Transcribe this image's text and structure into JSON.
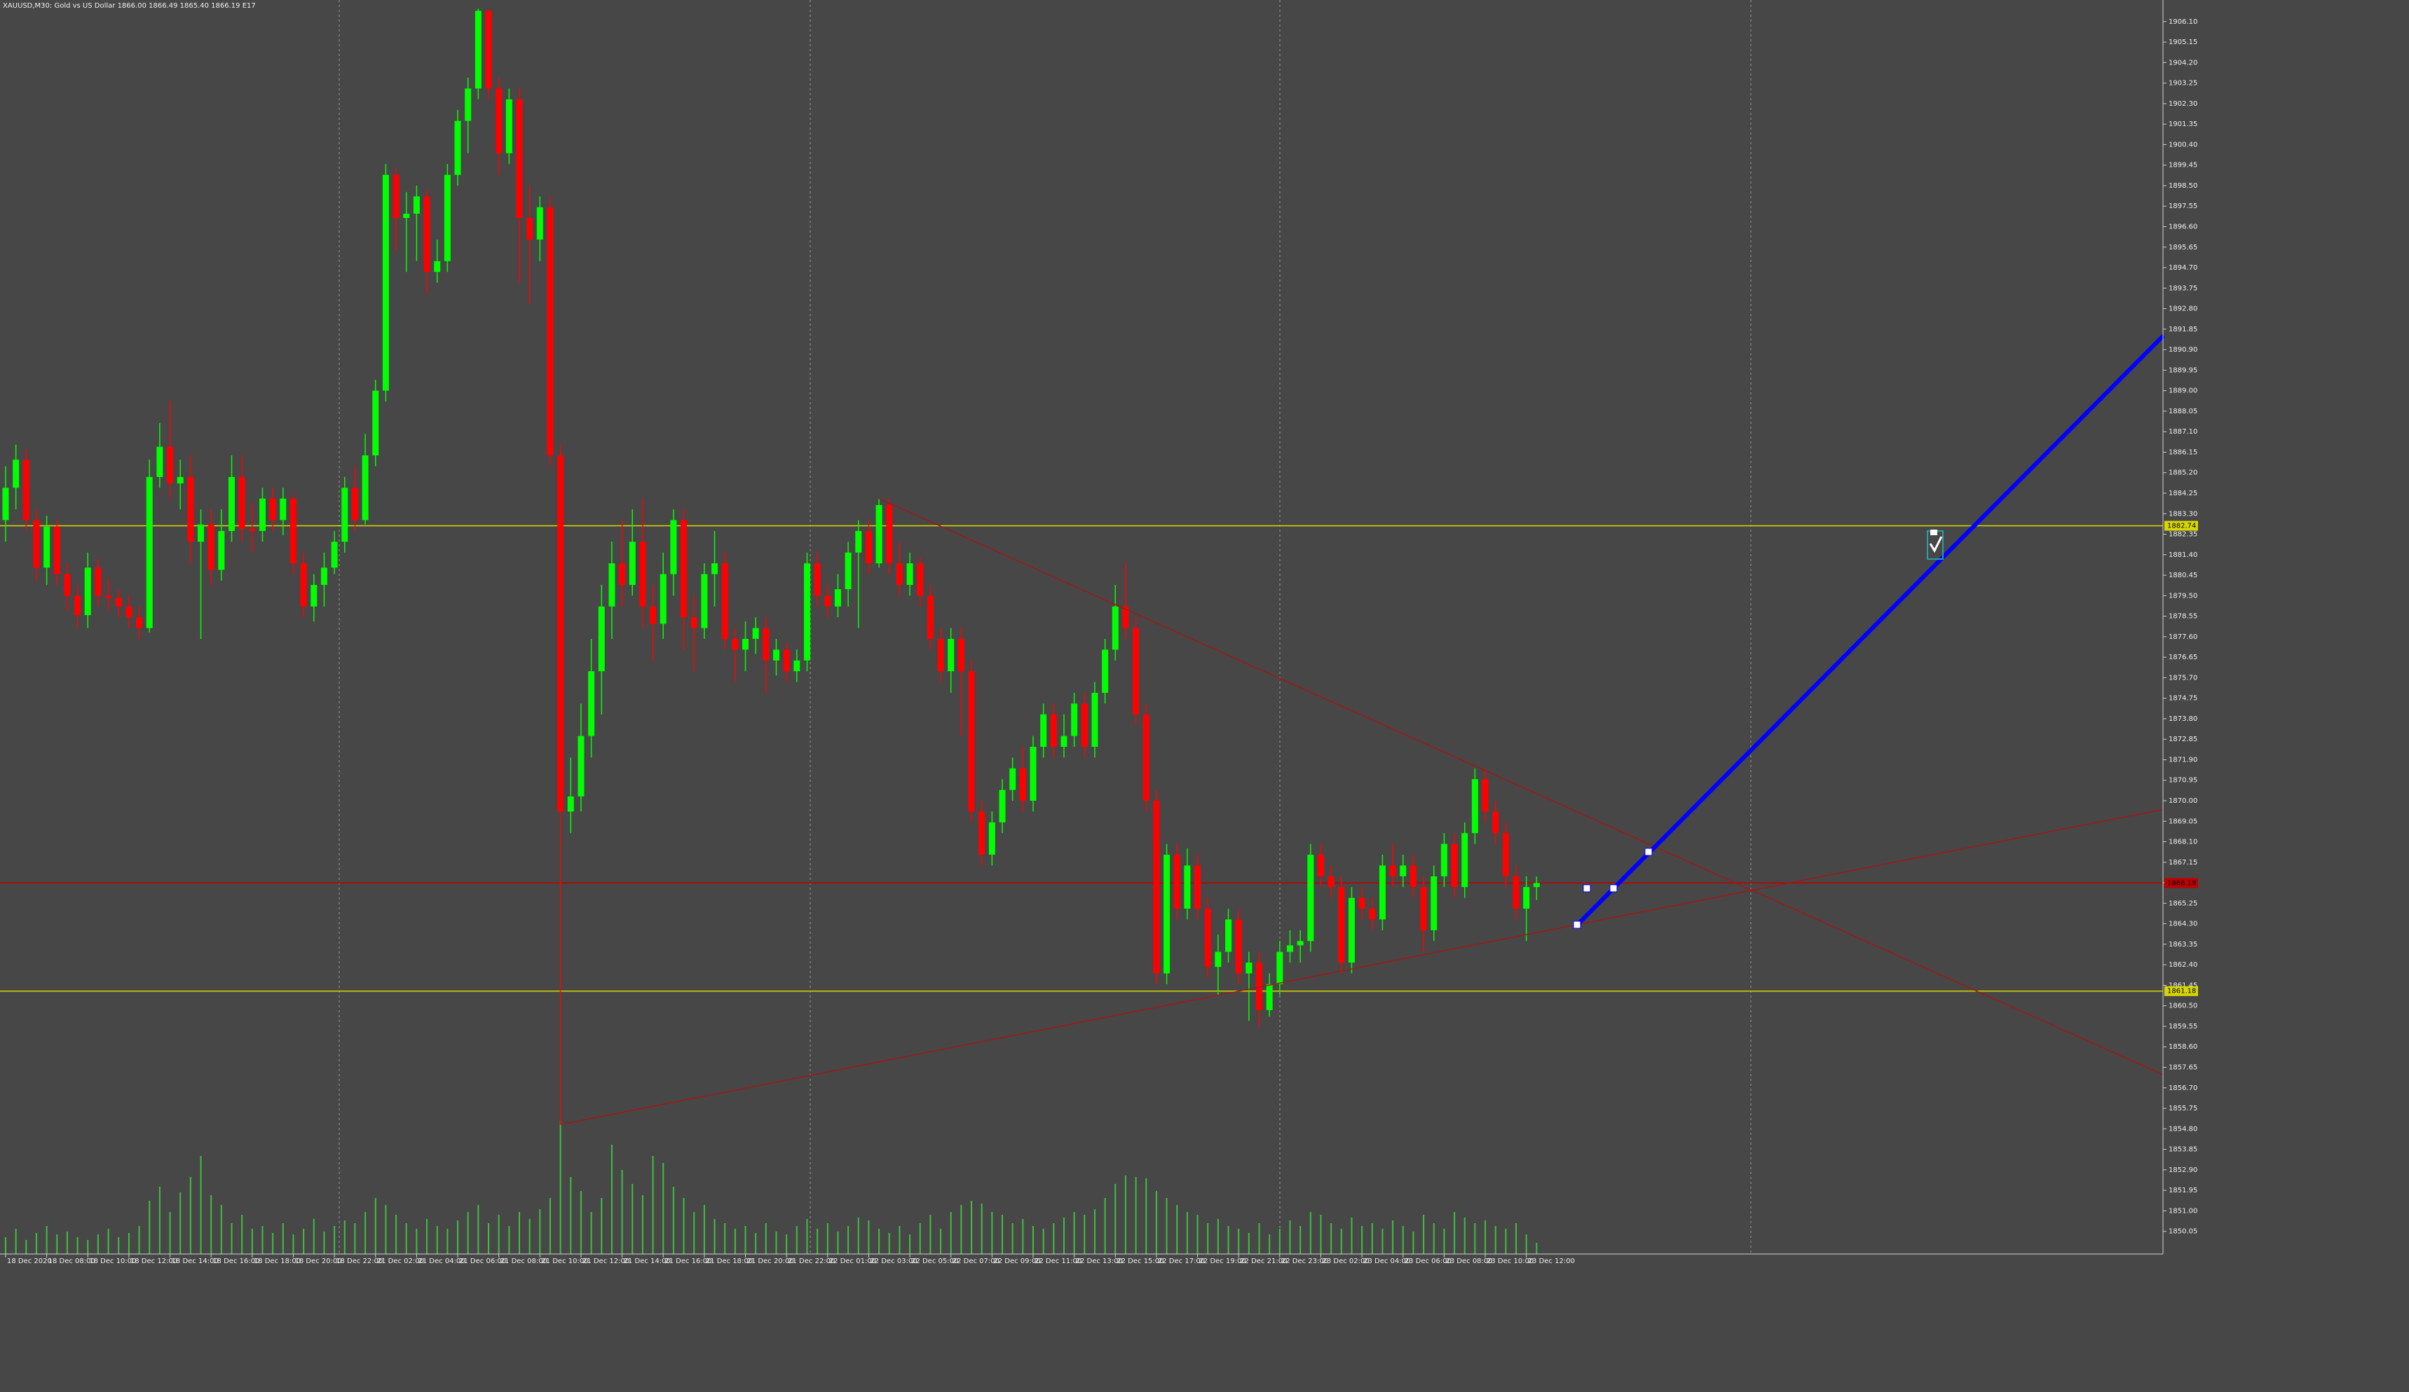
{
  "chart_data": {
    "type": "candlestick",
    "title": "XAUUSD,M30:  Gold vs US Dollar  1866.00 1866.49 1865.40 1866.19  E17",
    "bull_color": "#00ff00",
    "bear_color": "#ff0000",
    "volume_color": "#3fbf3f",
    "ylim": [
      1849.0,
      1907.1
    ],
    "yticks": [
      1850.05,
      {
        "value": 1851.0,
        "label": "1851.00"
      },
      1851.95,
      {
        "value": 1852.9,
        "label": "1852.90"
      },
      1853.85,
      {
        "value": 1854.8,
        "label": "1854.80"
      },
      1855.75,
      {
        "value": 1856.7,
        "label": "1856.70"
      },
      1857.65,
      {
        "value": 1858.6,
        "label": "1858.60"
      },
      1859.55,
      {
        "value": 1860.5,
        "label": "1860.50"
      },
      1861.45,
      {
        "value": 1862.4,
        "label": "1862.40"
      },
      1863.35,
      {
        "value": 1864.3,
        "label": "1864.30"
      },
      1865.25,
      {
        "value": 1866.2,
        "label": "1866.20"
      },
      1867.15,
      {
        "value": 1868.1,
        "label": "1868.10"
      },
      1869.05,
      {
        "value": 1870.0,
        "label": "1870.00"
      },
      1870.95,
      {
        "value": 1871.9,
        "label": "1871.90"
      },
      1872.85,
      {
        "value": 1873.8,
        "label": "1873.80"
      },
      1874.75,
      {
        "value": 1875.7,
        "label": "1875.70"
      },
      1876.65,
      {
        "value": 1877.6,
        "label": "1877.60"
      },
      1878.55,
      {
        "value": 1879.5,
        "label": "1879.50"
      },
      1880.45,
      {
        "value": 1881.4,
        "label": "1881.40"
      },
      1882.35,
      {
        "value": 1883.3,
        "label": "1883.30"
      },
      1884.25,
      {
        "value": 1885.2,
        "label": "1885.20"
      },
      1886.15,
      {
        "value": 1887.1,
        "label": "1887.10"
      },
      1888.05,
      {
        "value": 1889.0,
        "label": "1889.00"
      },
      1889.95,
      {
        "value": 1890.9,
        "label": "1890.90"
      },
      1891.85,
      {
        "value": 1892.8,
        "label": "1892.80"
      },
      1893.75,
      {
        "value": 1894.7,
        "label": "1894.70"
      },
      1895.65,
      {
        "value": 1896.6,
        "label": "1896.60"
      },
      1897.55,
      {
        "value": 1898.5,
        "label": "1898.50"
      },
      1899.45,
      {
        "value": 1900.4,
        "label": "1900.40"
      },
      1901.35,
      {
        "value": 1902.3,
        "label": "1902.30"
      },
      1903.25,
      {
        "value": 1904.2,
        "label": "1904.20"
      },
      1905.15,
      {
        "value": 1906.1,
        "label": "1906.10"
      }
    ],
    "categories": [
      "18 Dec 2020",
      null,
      null,
      null,
      "18 Dec 08:00",
      null,
      null,
      null,
      "18 Dec 10:00",
      null,
      null,
      null,
      "18 Dec 12:00",
      null,
      null,
      null,
      "18 Dec 14:00",
      null,
      null,
      null,
      "18 Dec 16:00",
      null,
      null,
      null,
      "18 Dec 18:00",
      null,
      null,
      null,
      "18 Dec 20:00",
      null,
      null,
      null,
      "18 Dec 22:00",
      null,
      null,
      null,
      "21 Dec 02:00",
      null,
      null,
      null,
      "21 Dec 04:00",
      null,
      null,
      null,
      "21 Dec 06:00",
      null,
      null,
      null,
      "21 Dec 08:00",
      null,
      null,
      null,
      "21 Dec 10:00",
      null,
      null,
      null,
      "21 Dec 12:00",
      null,
      null,
      null,
      "21 Dec 14:00",
      null,
      null,
      null,
      "21 Dec 16:00",
      null,
      null,
      null,
      "21 Dec 18:00",
      null,
      null,
      null,
      "21 Dec 20:00",
      null,
      null,
      null,
      "21 Dec 22:00",
      null,
      null,
      null,
      "22 Dec 01:00",
      null,
      null,
      null,
      "22 Dec 03:00",
      null,
      null,
      null,
      "22 Dec 05:00",
      null,
      null,
      null,
      "22 Dec 07:00",
      null,
      null,
      null,
      "22 Dec 09:00",
      null,
      null,
      null,
      "22 Dec 11:00",
      null,
      null,
      null,
      "22 Dec 13:00",
      null,
      null,
      null,
      "22 Dec 15:00",
      null,
      null,
      null,
      "22 Dec 17:00",
      null,
      null,
      null,
      "22 Dec 19:00",
      null,
      null,
      null,
      "22 Dec 21:00",
      null,
      null,
      null,
      "22 Dec 23:00",
      null,
      null,
      null,
      "23 Dec 02:00",
      null,
      null,
      null,
      "23 Dec 04:00",
      null,
      null,
      null,
      "23 Dec 06:00",
      null,
      null,
      null,
      "23 Dec 08:00",
      null,
      null,
      null,
      "23 Dec 10:00",
      null,
      null,
      null,
      "23 Dec 12:00",
      null
    ],
    "candles": [
      [
        1883.0,
        1885.5,
        1882.0,
        1884.5
      ],
      [
        1884.5,
        1886.5,
        1883.5,
        1885.8
      ],
      [
        1885.8,
        1886.3,
        1882.5,
        1883.0
      ],
      [
        1883.0,
        1883.5,
        1880.2,
        1880.8
      ],
      [
        1880.8,
        1883.2,
        1880.0,
        1882.7
      ],
      [
        1882.7,
        1883.0,
        1880.0,
        1880.5
      ],
      [
        1880.5,
        1881.0,
        1878.8,
        1879.5
      ],
      [
        1879.5,
        1880.0,
        1878.0,
        1878.6
      ],
      [
        1878.6,
        1881.5,
        1878.0,
        1880.8
      ],
      [
        1880.8,
        1881.2,
        1879.0,
        1879.5
      ],
      [
        1879.5,
        1880.3,
        1878.8,
        1879.4
      ],
      [
        1879.4,
        1879.8,
        1878.5,
        1879.0
      ],
      [
        1879.0,
        1879.5,
        1878.0,
        1878.5
      ],
      [
        1878.5,
        1879.0,
        1877.5,
        1878.0
      ],
      [
        1878.0,
        1885.8,
        1877.8,
        1885.0
      ],
      [
        1885.0,
        1887.5,
        1884.5,
        1886.4
      ],
      [
        1886.4,
        1888.5,
        1884.0,
        1884.7
      ],
      [
        1884.7,
        1885.8,
        1883.5,
        1885.0
      ],
      [
        1885.0,
        1886.0,
        1881.0,
        1882.0
      ],
      [
        1882.0,
        1883.5,
        1877.5,
        1882.8
      ],
      [
        1882.8,
        1883.5,
        1880.0,
        1880.7
      ],
      [
        1880.7,
        1883.5,
        1880.2,
        1882.5
      ],
      [
        1882.5,
        1886.0,
        1882.0,
        1885.0
      ],
      [
        1885.0,
        1886.0,
        1882.0,
        1882.6
      ],
      [
        1882.6,
        1883.8,
        1881.5,
        1882.5
      ],
      [
        1882.5,
        1884.5,
        1882.0,
        1884.0
      ],
      [
        1884.0,
        1884.5,
        1882.5,
        1883.0
      ],
      [
        1883.0,
        1884.5,
        1882.3,
        1884.0
      ],
      [
        1884.0,
        1884.2,
        1880.5,
        1881.0
      ],
      [
        1881.0,
        1881.5,
        1878.5,
        1879.0
      ],
      [
        1879.0,
        1880.5,
        1878.3,
        1880.0
      ],
      [
        1880.0,
        1881.5,
        1879.0,
        1880.8
      ],
      [
        1880.8,
        1882.5,
        1880.5,
        1882.0
      ],
      [
        1882.0,
        1885.0,
        1881.5,
        1884.5
      ],
      [
        1884.5,
        1885.5,
        1882.5,
        1883.0
      ],
      [
        1883.0,
        1887.0,
        1882.8,
        1886.0
      ],
      [
        1886.0,
        1889.5,
        1885.5,
        1889.0
      ],
      [
        1889.0,
        1899.5,
        1888.5,
        1899.0
      ],
      [
        1899.0,
        1899.3,
        1895.5,
        1897.0
      ],
      [
        1897.0,
        1898.2,
        1894.5,
        1897.2
      ],
      [
        1897.2,
        1898.5,
        1895.0,
        1898.0
      ],
      [
        1898.0,
        1898.3,
        1893.5,
        1894.5
      ],
      [
        1894.5,
        1896.0,
        1894.0,
        1895.0
      ],
      [
        1895.0,
        1899.5,
        1894.5,
        1899.0
      ],
      [
        1899.0,
        1902.0,
        1898.5,
        1901.5
      ],
      [
        1901.5,
        1903.5,
        1900.0,
        1903.0
      ],
      [
        1903.0,
        1906.7,
        1902.5,
        1906.6
      ],
      [
        1906.6,
        1906.7,
        1902.5,
        1903.0
      ],
      [
        1903.0,
        1903.5,
        1899.0,
        1900.0
      ],
      [
        1900.0,
        1903.0,
        1899.5,
        1902.5
      ],
      [
        1902.5,
        1903.0,
        1894.0,
        1897.0
      ],
      [
        1897.0,
        1898.5,
        1893.0,
        1896.0
      ],
      [
        1896.0,
        1898.0,
        1895.0,
        1897.5
      ],
      [
        1897.5,
        1898.0,
        1885.5,
        1886.0
      ],
      [
        1886.0,
        1886.5,
        1855.0,
        1869.5
      ],
      [
        1869.5,
        1872.0,
        1868.5,
        1870.2
      ],
      [
        1870.2,
        1874.5,
        1869.5,
        1873.0
      ],
      [
        1873.0,
        1877.5,
        1872.0,
        1876.0
      ],
      [
        1876.0,
        1880.0,
        1874.0,
        1879.0
      ],
      [
        1879.0,
        1882.0,
        1877.5,
        1881.0
      ],
      [
        1881.0,
        1883.0,
        1879.0,
        1880.0
      ],
      [
        1880.0,
        1883.5,
        1879.5,
        1882.0
      ],
      [
        1882.0,
        1884.0,
        1878.0,
        1879.0
      ],
      [
        1879.0,
        1880.0,
        1876.5,
        1878.2
      ],
      [
        1878.2,
        1881.5,
        1877.5,
        1880.5
      ],
      [
        1880.5,
        1883.5,
        1879.5,
        1883.0
      ],
      [
        1883.0,
        1883.5,
        1877.0,
        1878.5
      ],
      [
        1878.5,
        1879.5,
        1876.0,
        1878.0
      ],
      [
        1878.0,
        1881.0,
        1877.5,
        1880.5
      ],
      [
        1880.5,
        1882.5,
        1879.0,
        1881.0
      ],
      [
        1881.0,
        1881.5,
        1877.0,
        1877.5
      ],
      [
        1877.5,
        1878.0,
        1875.5,
        1877.0
      ],
      [
        1877.0,
        1878.3,
        1876.0,
        1877.5
      ],
      [
        1877.5,
        1878.5,
        1876.8,
        1878.0
      ],
      [
        1878.0,
        1878.5,
        1875.0,
        1876.5
      ],
      [
        1876.5,
        1877.5,
        1875.8,
        1877.0
      ],
      [
        1877.0,
        1877.3,
        1875.5,
        1876.0
      ],
      [
        1876.0,
        1877.0,
        1875.5,
        1876.5
      ],
      [
        1876.5,
        1881.5,
        1876.0,
        1881.0
      ],
      [
        1881.0,
        1881.5,
        1879.0,
        1879.5
      ],
      [
        1879.5,
        1880.0,
        1878.5,
        1879.0
      ],
      [
        1879.0,
        1880.5,
        1878.5,
        1879.8
      ],
      [
        1879.8,
        1882.0,
        1879.0,
        1881.5
      ],
      [
        1881.5,
        1883.0,
        1878.0,
        1882.5
      ],
      [
        1882.5,
        1883.0,
        1880.5,
        1881.0
      ],
      [
        1881.0,
        1884.0,
        1880.8,
        1883.7
      ],
      [
        1883.7,
        1884.0,
        1880.5,
        1881.0
      ],
      [
        1881.0,
        1882.0,
        1879.5,
        1880.0
      ],
      [
        1880.0,
        1881.5,
        1879.5,
        1881.0
      ],
      [
        1881.0,
        1881.3,
        1879.0,
        1879.5
      ],
      [
        1879.5,
        1880.0,
        1877.0,
        1877.5
      ],
      [
        1877.5,
        1878.0,
        1875.5,
        1876.0
      ],
      [
        1876.0,
        1878.0,
        1875.0,
        1877.5
      ],
      [
        1877.5,
        1878.0,
        1873.0,
        1876.0
      ],
      [
        1876.0,
        1876.5,
        1869.0,
        1869.5
      ],
      [
        1869.5,
        1870.0,
        1867.0,
        1867.5
      ],
      [
        1867.5,
        1869.5,
        1867.0,
        1869.0
      ],
      [
        1869.0,
        1871.0,
        1868.5,
        1870.5
      ],
      [
        1870.5,
        1872.0,
        1870.0,
        1871.5
      ],
      [
        1871.5,
        1872.5,
        1869.5,
        1870.0
      ],
      [
        1870.0,
        1873.0,
        1869.5,
        1872.5
      ],
      [
        1872.5,
        1874.5,
        1872.0,
        1874.0
      ],
      [
        1874.0,
        1874.5,
        1872.0,
        1872.5
      ],
      [
        1872.5,
        1874.0,
        1872.0,
        1873.0
      ],
      [
        1873.0,
        1875.0,
        1872.5,
        1874.5
      ],
      [
        1874.5,
        1875.0,
        1872.0,
        1872.5
      ],
      [
        1872.5,
        1875.5,
        1872.0,
        1875.0
      ],
      [
        1875.0,
        1877.5,
        1874.5,
        1877.0
      ],
      [
        1877.0,
        1880.0,
        1876.5,
        1879.0
      ],
      [
        1879.0,
        1881.0,
        1877.5,
        1878.0
      ],
      [
        1878.0,
        1878.5,
        1873.5,
        1874.0
      ],
      [
        1874.0,
        1874.5,
        1869.5,
        1870.0
      ],
      [
        1870.0,
        1870.5,
        1861.5,
        1862.0
      ],
      [
        1862.0,
        1868.0,
        1861.5,
        1867.5
      ],
      [
        1867.5,
        1868.0,
        1864.5,
        1865.0
      ],
      [
        1865.0,
        1867.8,
        1864.5,
        1867.0
      ],
      [
        1867.0,
        1867.5,
        1864.5,
        1865.0
      ],
      [
        1865.0,
        1865.5,
        1861.8,
        1862.3
      ],
      [
        1862.3,
        1863.8,
        1861.0,
        1863.0
      ],
      [
        1863.0,
        1865.0,
        1862.5,
        1864.5
      ],
      [
        1864.5,
        1865.0,
        1861.5,
        1862.0
      ],
      [
        1862.0,
        1863.0,
        1859.8,
        1862.5
      ],
      [
        1862.5,
        1863.0,
        1859.5,
        1860.3
      ],
      [
        1860.3,
        1862.0,
        1860.0,
        1861.5
      ],
      [
        1861.5,
        1863.5,
        1861.0,
        1863.0
      ],
      [
        1863.0,
        1864.0,
        1862.5,
        1863.3
      ],
      [
        1863.3,
        1864.0,
        1862.5,
        1863.5
      ],
      [
        1863.5,
        1868.0,
        1863.0,
        1867.5
      ],
      [
        1867.5,
        1868.0,
        1866.0,
        1866.5
      ],
      [
        1866.5,
        1867.0,
        1865.5,
        1866.0
      ],
      [
        1866.0,
        1866.5,
        1862.0,
        1862.5
      ],
      [
        1862.5,
        1866.0,
        1862.0,
        1865.5
      ],
      [
        1865.5,
        1866.0,
        1864.5,
        1865.0
      ],
      [
        1865.0,
        1865.5,
        1864.0,
        1864.5
      ],
      [
        1864.5,
        1867.5,
        1864.0,
        1867.0
      ],
      [
        1867.0,
        1868.0,
        1866.0,
        1866.5
      ],
      [
        1866.5,
        1867.5,
        1866.0,
        1867.0
      ],
      [
        1867.0,
        1867.5,
        1865.5,
        1866.0
      ],
      [
        1866.0,
        1866.5,
        1863.0,
        1864.0
      ],
      [
        1864.0,
        1867.0,
        1863.5,
        1866.5
      ],
      [
        1866.5,
        1868.5,
        1866.0,
        1868.0
      ],
      [
        1868.0,
        1868.5,
        1865.5,
        1866.0
      ],
      [
        1866.0,
        1869.0,
        1865.5,
        1868.5
      ],
      [
        1868.5,
        1871.5,
        1868.0,
        1871.0
      ],
      [
        1871.0,
        1871.5,
        1869.0,
        1869.5
      ],
      [
        1869.5,
        1870.0,
        1868.0,
        1868.5
      ],
      [
        1868.5,
        1869.0,
        1866.0,
        1866.5
      ],
      [
        1866.5,
        1867.0,
        1864.5,
        1865.0
      ],
      [
        1865.0,
        1866.5,
        1863.5,
        1866.0
      ],
      [
        1866.0,
        1866.49,
        1865.4,
        1866.19
      ]
    ],
    "volume": [
      12,
      18,
      10,
      15,
      20,
      14,
      16,
      12,
      10,
      14,
      18,
      12,
      15,
      20,
      38,
      48,
      30,
      44,
      55,
      70,
      42,
      35,
      22,
      28,
      18,
      20,
      15,
      22,
      14,
      18,
      25,
      16,
      20,
      24,
      22,
      30,
      40,
      35,
      28,
      22,
      18,
      25,
      20,
      18,
      24,
      30,
      35,
      22,
      28,
      20,
      30,
      25,
      32,
      40,
      95,
      55,
      45,
      30,
      40,
      78,
      60,
      50,
      42,
      70,
      65,
      48,
      40,
      30,
      35,
      25,
      22,
      18,
      20,
      15,
      22,
      16,
      14,
      20,
      25,
      18,
      22,
      16,
      20,
      26,
      24,
      18,
      15,
      20,
      14,
      22,
      28,
      18,
      30,
      35,
      38,
      36,
      30,
      28,
      22,
      25,
      20,
      18,
      22,
      26,
      30,
      28,
      32,
      40,
      50,
      56,
      55,
      54,
      45,
      40,
      35,
      30,
      28,
      22,
      25,
      20,
      18,
      15,
      22,
      14,
      18,
      24,
      20,
      30,
      28,
      22,
      18,
      26,
      20,
      22,
      18,
      24,
      20,
      16,
      28,
      22,
      18,
      30,
      26,
      22,
      24,
      20,
      18,
      22,
      14,
      8
    ],
    "hlines": [
      {
        "value": 1882.74,
        "color": "#d8d800"
      },
      {
        "value": 1861.18,
        "color": "#d8d800"
      },
      {
        "value": 1866.19,
        "color": "#c00000"
      }
    ],
    "trendlines": [
      {
        "x": [
          85,
          210
        ],
        "y": [
          1884.0,
          1857.3
        ],
        "color": "#a01818",
        "width": 1.5
      },
      {
        "x": [
          54,
          210
        ],
        "y": [
          1855.0,
          1869.6
        ],
        "color": "#a01818",
        "width": 1.5
      },
      {
        "x": [
          153,
          210
        ],
        "y": [
          1864.27,
          1891.55
        ],
        "color": "#0000ff",
        "width": 6
      }
    ]
  }
}
